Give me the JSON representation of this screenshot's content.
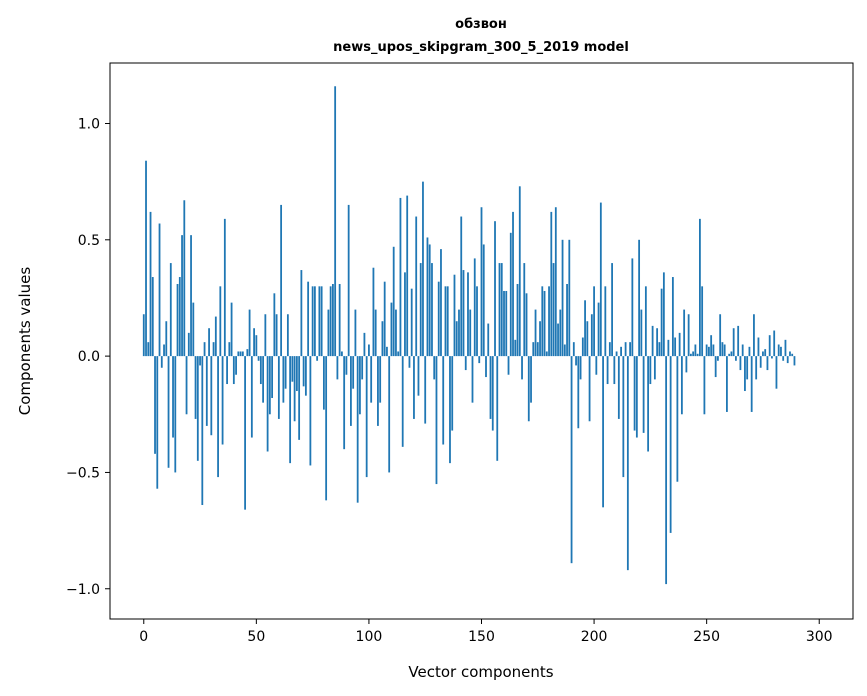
{
  "chart_data": {
    "type": "bar",
    "title_line1": "обзвон",
    "title_line2": "news_upos_skipgram_300_5_2019 model",
    "xlabel": "Vector components",
    "ylabel": "Components values",
    "xlim": [
      -15,
      315
    ],
    "ylim": [
      -1.13,
      1.26
    ],
    "x_ticks": [
      0,
      50,
      100,
      150,
      200,
      250,
      300
    ],
    "x_tick_labels": [
      "0",
      "50",
      "100",
      "150",
      "200",
      "250",
      "300"
    ],
    "y_ticks": [
      -1.0,
      -0.5,
      0.0,
      0.5,
      1.0
    ],
    "y_tick_labels": [
      "−1.0",
      "−0.5",
      "0.0",
      "0.5",
      "1.0"
    ],
    "bar_color": "#1f77b4",
    "grid": false,
    "values": [
      0.18,
      0.84,
      0.06,
      0.62,
      0.34,
      -0.42,
      -0.57,
      0.57,
      -0.05,
      0.05,
      0.15,
      -0.48,
      0.4,
      -0.35,
      -0.5,
      0.31,
      0.34,
      0.52,
      0.67,
      -0.25,
      0.1,
      0.52,
      0.23,
      -0.27,
      -0.45,
      -0.04,
      -0.64,
      0.06,
      -0.3,
      0.12,
      -0.34,
      0.06,
      0.17,
      -0.52,
      0.3,
      -0.38,
      0.59,
      -0.12,
      0.06,
      0.23,
      -0.12,
      -0.08,
      0.02,
      0.02,
      0.02,
      -0.66,
      0.03,
      0.2,
      -0.35,
      0.12,
      0.09,
      -0.02,
      -0.12,
      -0.2,
      0.18,
      -0.41,
      -0.25,
      -0.18,
      0.27,
      0.18,
      -0.27,
      0.65,
      -0.2,
      -0.14,
      0.18,
      -0.46,
      -0.11,
      -0.28,
      -0.15,
      -0.36,
      0.37,
      -0.13,
      -0.17,
      0.32,
      -0.47,
      0.3,
      0.3,
      -0.02,
      0.3,
      0.3,
      -0.23,
      -0.62,
      0.2,
      0.3,
      0.31,
      1.16,
      -0.1,
      0.31,
      0.02,
      -0.4,
      -0.08,
      0.65,
      -0.3,
      -0.14,
      0.2,
      -0.63,
      -0.25,
      -0.1,
      0.1,
      -0.52,
      0.05,
      -0.2,
      0.38,
      0.2,
      -0.3,
      -0.2,
      0.15,
      0.32,
      0.04,
      -0.5,
      0.23,
      0.47,
      0.2,
      0.02,
      0.68,
      -0.39,
      0.36,
      0.69,
      -0.05,
      0.29,
      -0.27,
      0.6,
      -0.17,
      0.4,
      0.75,
      -0.29,
      0.51,
      0.48,
      0.4,
      -0.1,
      -0.55,
      0.32,
      0.46,
      -0.38,
      0.3,
      0.3,
      -0.46,
      -0.32,
      0.35,
      0.15,
      0.2,
      0.6,
      0.37,
      -0.06,
      0.36,
      0.2,
      -0.2,
      0.42,
      0.3,
      -0.03,
      0.64,
      0.48,
      -0.09,
      0.14,
      -0.27,
      -0.32,
      0.58,
      -0.45,
      0.4,
      0.4,
      0.28,
      0.28,
      -0.08,
      0.53,
      0.62,
      0.07,
      0.31,
      0.73,
      -0.1,
      0.4,
      0.27,
      -0.28,
      -0.2,
      0.06,
      0.2,
      0.06,
      0.15,
      0.3,
      0.28,
      0.02,
      0.3,
      0.62,
      0.4,
      0.64,
      0.14,
      0.2,
      0.5,
      0.05,
      0.31,
      0.5,
      -0.89,
      0.06,
      -0.04,
      -0.31,
      -0.1,
      0.08,
      0.24,
      0.15,
      -0.28,
      0.18,
      0.3,
      -0.08,
      0.23,
      0.66,
      -0.65,
      0.3,
      -0.12,
      0.06,
      0.4,
      -0.12,
      0.02,
      -0.27,
      0.04,
      -0.52,
      0.06,
      -0.92,
      0.06,
      0.42,
      -0.32,
      -0.35,
      0.5,
      0.2,
      -0.33,
      0.3,
      -0.41,
      -0.12,
      0.13,
      -0.1,
      0.12,
      0.06,
      0.29,
      0.36,
      -0.98,
      0.07,
      -0.76,
      0.34,
      0.08,
      -0.54,
      0.1,
      -0.25,
      0.2,
      -0.07,
      0.18,
      0.01,
      0.02,
      0.05,
      0.01,
      0.59,
      0.3,
      -0.25,
      0.05,
      0.04,
      0.09,
      0.05,
      -0.09,
      -0.02,
      0.18,
      0.06,
      0.05,
      -0.24,
      0.01,
      0.02,
      0.12,
      -0.02,
      0.13,
      -0.06,
      0.05,
      -0.15,
      -0.1,
      0.04,
      -0.24,
      0.18,
      -0.1,
      0.08,
      -0.05,
      0.02,
      0.03,
      -0.06,
      0.09,
      -0.01,
      0.11,
      -0.14,
      0.05,
      0.04,
      -0.02,
      0.07,
      -0.03,
      0.02,
      0.01,
      -0.04
    ]
  }
}
